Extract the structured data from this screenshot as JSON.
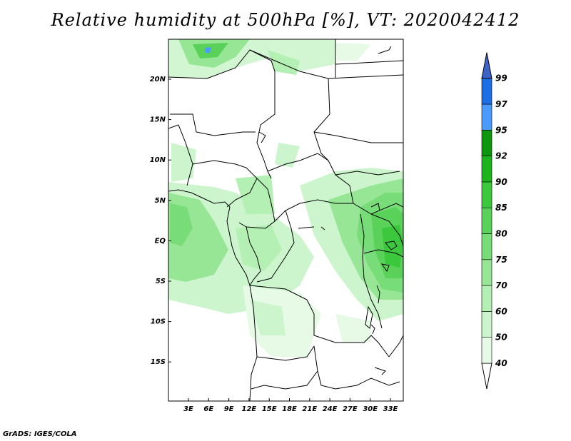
{
  "title": "Relative humidity at 500hPa [%], VT: 2020042412",
  "credit": "GrADS: IGES/COLA",
  "map": {
    "latitude_labels": [
      "20N",
      "15N",
      "10N",
      "5N",
      "EQ",
      "5S",
      "10S",
      "15S"
    ],
    "longitude_labels": [
      "3E",
      "6E",
      "9E",
      "12E",
      "15E",
      "18E",
      "21E",
      "24E",
      "27E",
      "30E",
      "33E"
    ]
  },
  "colorbar": {
    "levels": [
      "40",
      "50",
      "60",
      "70",
      "75",
      "80",
      "85",
      "90",
      "92",
      "95",
      "97",
      "99"
    ],
    "colors": [
      "#ffffff",
      "#e6fae6",
      "#cdf5cd",
      "#b4f0b4",
      "#96e696",
      "#78dc78",
      "#5ad25a",
      "#3cc83c",
      "#1eb41e",
      "#0f960f",
      "#4b9bff",
      "#1e6ee6",
      "#3c64c8"
    ]
  }
}
